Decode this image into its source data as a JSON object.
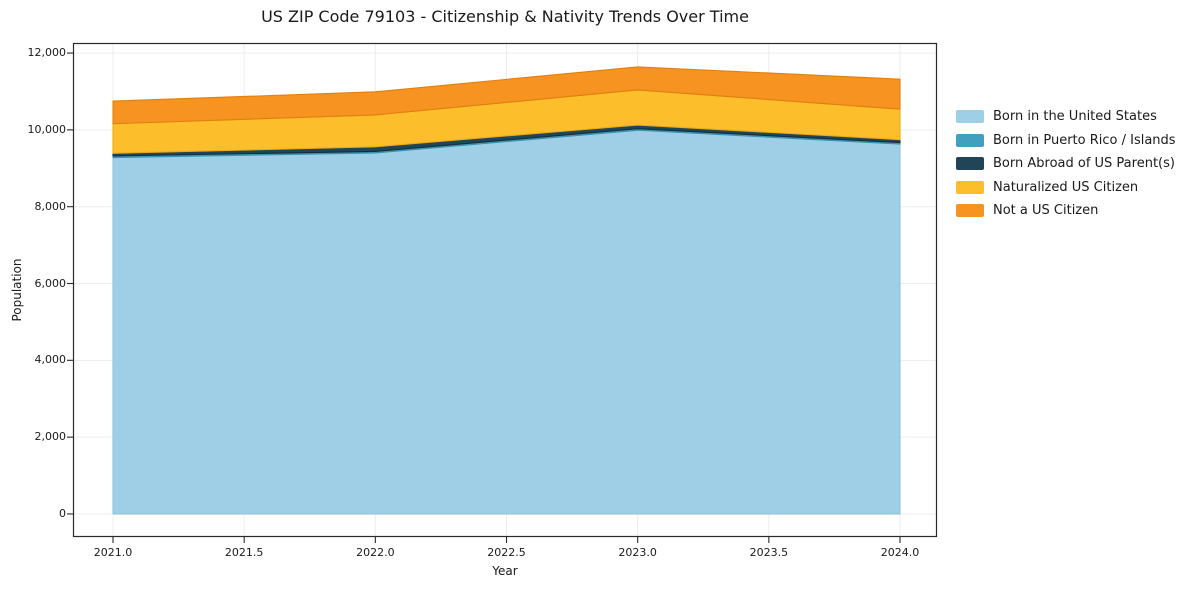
{
  "chart_data": {
    "type": "area",
    "stacked": true,
    "title": "US ZIP Code 79103 - Citizenship & Nativity Trends Over Time",
    "xlabel": "Year",
    "ylabel": "Population",
    "x": [
      2021,
      2022,
      2023,
      2024
    ],
    "series": [
      {
        "name": "Born in the United States",
        "color": "#9FCFE6",
        "edge_color": "#8ec2da",
        "values": [
          9280,
          9400,
          9990,
          9630
        ]
      },
      {
        "name": "Born in Puerto Rico / Islands",
        "color": "#41A0BF",
        "edge_color": "#3792b1",
        "values": [
          40,
          40,
          40,
          40
        ]
      },
      {
        "name": "Born Abroad of US Parent(s)",
        "color": "#1F4557",
        "edge_color": "#142e3a",
        "values": [
          70,
          120,
          95,
          75
        ]
      },
      {
        "name": "Naturalized US Citizen",
        "color": "#FCBF2B",
        "edge_color": "#eaaa18",
        "values": [
          770,
          830,
          915,
          795
        ]
      },
      {
        "name": "Not a US Citizen",
        "color": "#F79421",
        "edge_color": "#e07e10",
        "values": [
          590,
          600,
          600,
          780
        ]
      }
    ],
    "totals": [
      10750,
      10990,
      11640,
      11320
    ],
    "xticks": [
      2021.0,
      2021.5,
      2022.0,
      2022.5,
      2023.0,
      2023.5,
      2024.0
    ],
    "xtick_labels": [
      "2021.0",
      "2021.5",
      "2022.0",
      "2022.5",
      "2023.0",
      "2023.5",
      "2024.0"
    ],
    "yticks": [
      0,
      2000,
      4000,
      6000,
      8000,
      10000,
      12000
    ],
    "ytick_labels": [
      "0",
      "2,000",
      "4,000",
      "6,000",
      "8,000",
      "10,000",
      "12,000"
    ],
    "xlim": [
      2020.8475,
      2024.141
    ],
    "ylim": [
      -600,
      12262
    ],
    "grid": true,
    "grid_color": "#ededed",
    "spine_color": "#2a2a2a",
    "legend_position": "right"
  }
}
